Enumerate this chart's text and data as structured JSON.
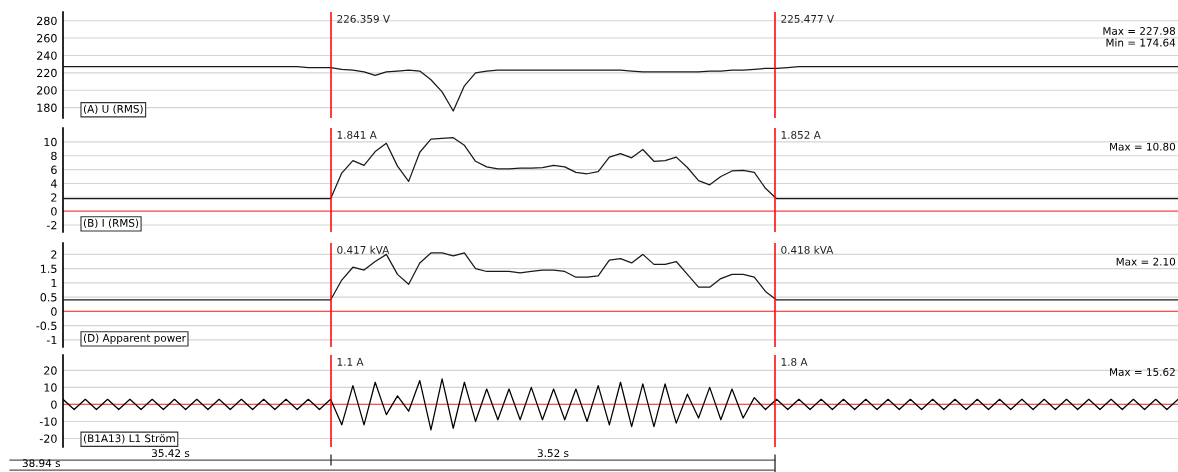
{
  "chart_data": [
    {
      "type": "line",
      "categories": [
        null,
        null,
        null,
        null,
        null,
        null,
        null,
        null,
        null,
        null,
        null,
        null,
        null,
        null,
        null,
        null,
        null,
        null,
        null,
        null,
        null,
        null,
        null,
        null,
        null,
        null,
        null,
        null,
        null,
        null,
        null,
        null,
        null,
        null,
        null,
        null,
        null,
        null,
        null,
        null,
        null,
        null,
        null,
        null,
        null,
        null,
        null,
        null,
        null,
        null,
        null,
        null,
        null,
        null,
        null,
        null,
        null,
        null,
        null,
        null,
        null,
        null,
        null,
        null,
        null,
        null,
        null,
        null,
        null,
        null,
        null,
        null,
        null,
        null,
        null,
        null,
        null,
        null,
        null,
        null,
        null,
        null,
        null,
        null,
        null,
        null,
        null,
        null,
        null,
        null,
        null,
        null,
        null,
        null,
        null,
        null,
        null,
        null,
        null,
        null,
        null
      ],
      "series": [
        {
          "color": "#1a1a1a",
          "values": [
            227,
            227,
            227,
            227,
            227,
            227,
            227,
            227,
            227,
            227,
            227,
            227,
            227,
            227,
            227,
            227,
            227,
            227,
            227,
            227,
            227,
            227,
            226,
            226,
            226,
            224,
            223,
            221,
            217,
            221,
            222,
            223,
            222,
            212,
            198,
            176,
            205,
            220,
            222,
            223,
            223,
            223,
            223,
            223,
            223,
            223,
            223,
            223,
            223,
            223,
            223,
            222,
            221,
            221,
            221,
            221,
            221,
            221,
            222,
            222,
            223,
            223,
            224,
            225,
            225,
            226,
            227,
            227,
            227,
            227,
            227,
            227,
            227,
            227,
            227,
            227,
            227,
            227,
            227,
            227,
            227,
            227,
            227,
            227,
            227,
            227,
            227,
            227,
            227,
            227,
            227,
            227,
            227,
            227,
            227,
            227,
            227,
            227,
            227,
            227,
            227
          ]
        }
      ],
      "ylim": [
        168,
        290
      ],
      "yticks": [
        180,
        200,
        220,
        240,
        260,
        280
      ],
      "grid": "y",
      "tick_labels": "y",
      "line_style": "solid",
      "annotations": [
        "(A) U (RMS)",
        "226.359 V",
        "225.477 V",
        "Max = 227.98",
        "Min = 174.64"
      ]
    },
    {
      "type": "line",
      "categories": [
        null,
        null,
        null,
        null,
        null,
        null,
        null,
        null,
        null,
        null,
        null,
        null,
        null,
        null,
        null,
        null,
        null,
        null,
        null,
        null,
        null,
        null,
        null,
        null,
        null,
        null,
        null,
        null,
        null,
        null,
        null,
        null,
        null,
        null,
        null,
        null,
        null,
        null,
        null,
        null,
        null,
        null,
        null,
        null,
        null,
        null,
        null,
        null,
        null,
        null,
        null,
        null,
        null,
        null,
        null,
        null,
        null,
        null,
        null,
        null,
        null,
        null,
        null,
        null,
        null,
        null,
        null,
        null,
        null,
        null,
        null,
        null,
        null,
        null,
        null,
        null,
        null,
        null,
        null,
        null,
        null,
        null,
        null,
        null,
        null,
        null,
        null,
        null,
        null,
        null,
        null,
        null,
        null,
        null,
        null,
        null,
        null,
        null,
        null,
        null,
        null
      ],
      "series": [
        {
          "color": "#1a1a1a",
          "values": [
            1.8,
            1.8,
            1.8,
            1.8,
            1.8,
            1.8,
            1.8,
            1.8,
            1.8,
            1.8,
            1.8,
            1.8,
            1.8,
            1.8,
            1.8,
            1.8,
            1.8,
            1.8,
            1.8,
            1.8,
            1.8,
            1.8,
            1.8,
            1.8,
            1.8,
            5.5,
            7.3,
            6.6,
            8.6,
            9.8,
            6.5,
            4.3,
            8.5,
            10.4,
            10.5,
            10.6,
            9.5,
            7.2,
            6.4,
            6.1,
            6.1,
            6.2,
            6.2,
            6.3,
            6.6,
            6.4,
            5.6,
            5.4,
            5.7,
            7.8,
            8.3,
            7.7,
            8.9,
            7.2,
            7.3,
            7.8,
            6.3,
            4.4,
            3.8,
            5.0,
            5.8,
            5.9,
            5.6,
            3.3,
            1.8,
            1.8,
            1.8,
            1.8,
            1.8,
            1.8,
            1.8,
            1.8,
            1.8,
            1.8,
            1.8,
            1.8,
            1.8,
            1.8,
            1.8,
            1.8,
            1.8,
            1.8,
            1.8,
            1.8,
            1.8,
            1.8,
            1.8,
            1.8,
            1.8,
            1.8,
            1.8,
            1.8,
            1.8,
            1.8,
            1.8,
            1.8,
            1.8,
            1.8,
            1.8,
            1.8,
            1.8
          ]
        }
      ],
      "ylim": [
        -3,
        12
      ],
      "yticks": [
        -2,
        0,
        2,
        4,
        6,
        8,
        10
      ],
      "grid": "y",
      "tick_labels": "y",
      "line_style": "solid",
      "ref_lines": [
        {
          "axis": "y",
          "value": 0,
          "color": "#ff5050"
        }
      ],
      "annotations": [
        "(B) I (RMS)",
        "1.841 A",
        "1.852 A",
        "Max = 10.80"
      ]
    },
    {
      "type": "line",
      "categories": [
        null,
        null,
        null,
        null,
        null,
        null,
        null,
        null,
        null,
        null,
        null,
        null,
        null,
        null,
        null,
        null,
        null,
        null,
        null,
        null,
        null,
        null,
        null,
        null,
        null,
        null,
        null,
        null,
        null,
        null,
        null,
        null,
        null,
        null,
        null,
        null,
        null,
        null,
        null,
        null,
        null,
        null,
        null,
        null,
        null,
        null,
        null,
        null,
        null,
        null,
        null,
        null,
        null,
        null,
        null,
        null,
        null,
        null,
        null,
        null,
        null,
        null,
        null,
        null,
        null,
        null,
        null,
        null,
        null,
        null,
        null,
        null,
        null,
        null,
        null,
        null,
        null,
        null,
        null,
        null,
        null,
        null,
        null,
        null,
        null,
        null,
        null,
        null,
        null,
        null,
        null,
        null,
        null,
        null,
        null,
        null,
        null,
        null,
        null,
        null,
        null
      ],
      "series": [
        {
          "color": "#1a1a1a",
          "values": [
            0.4,
            0.4,
            0.4,
            0.4,
            0.4,
            0.4,
            0.4,
            0.4,
            0.4,
            0.4,
            0.4,
            0.4,
            0.4,
            0.4,
            0.4,
            0.4,
            0.4,
            0.4,
            0.4,
            0.4,
            0.4,
            0.4,
            0.4,
            0.4,
            0.4,
            1.1,
            1.55,
            1.45,
            1.75,
            2.0,
            1.3,
            0.95,
            1.7,
            2.05,
            2.05,
            1.95,
            2.05,
            1.5,
            1.4,
            1.4,
            1.4,
            1.35,
            1.4,
            1.45,
            1.45,
            1.4,
            1.2,
            1.2,
            1.25,
            1.8,
            1.85,
            1.7,
            2.0,
            1.65,
            1.65,
            1.75,
            1.3,
            0.85,
            0.85,
            1.15,
            1.3,
            1.3,
            1.2,
            0.7,
            0.4,
            0.4,
            0.4,
            0.4,
            0.4,
            0.4,
            0.4,
            0.4,
            0.4,
            0.4,
            0.4,
            0.4,
            0.4,
            0.4,
            0.4,
            0.4,
            0.4,
            0.4,
            0.4,
            0.4,
            0.4,
            0.4,
            0.4,
            0.4,
            0.4,
            0.4,
            0.4,
            0.4,
            0.4,
            0.4,
            0.4,
            0.4,
            0.4,
            0.4,
            0.4,
            0.4,
            0.4
          ]
        }
      ],
      "ylim": [
        -1.25,
        2.4
      ],
      "yticks": [
        -1,
        -0.5,
        0,
        0.5,
        1,
        1.5,
        2
      ],
      "grid": "y",
      "tick_labels": "y",
      "line_style": "solid",
      "ref_lines": [
        {
          "axis": "y",
          "value": 0,
          "color": "#ff5050"
        }
      ],
      "annotations": [
        "(D) Apparent power",
        "0.417 kVA",
        "0.418 kVA",
        "Max = 2.10"
      ]
    },
    {
      "type": "line",
      "categories": [
        null,
        null,
        null,
        null,
        null,
        null,
        null,
        null,
        null,
        null,
        null,
        null,
        null,
        null,
        null,
        null,
        null,
        null,
        null,
        null,
        null,
        null,
        null,
        null,
        null,
        null,
        null,
        null,
        null,
        null,
        null,
        null,
        null,
        null,
        null,
        null,
        null,
        null,
        null,
        null,
        null,
        null,
        null,
        null,
        null,
        null,
        null,
        null,
        null,
        null,
        null,
        null,
        null,
        null,
        null,
        null,
        null,
        null,
        null,
        null,
        null,
        null,
        null,
        null,
        null,
        null,
        null,
        null,
        null,
        null,
        null,
        null,
        null,
        null,
        null,
        null,
        null,
        null,
        null,
        null,
        null,
        null,
        null,
        null,
        null,
        null,
        null,
        null,
        null,
        null,
        null,
        null,
        null,
        null,
        null,
        null,
        null,
        null,
        null,
        null,
        null
      ],
      "series": [
        {
          "color": "#000000",
          "values": [
            3,
            -3,
            3,
            -3,
            3,
            -3,
            3,
            -3,
            3,
            -3,
            3,
            -3,
            3,
            -3,
            3,
            -3,
            3,
            -3,
            3,
            -3,
            3,
            -3,
            3,
            -3,
            3,
            -12,
            11,
            -12,
            13,
            -6,
            5,
            -4,
            14,
            -15,
            15,
            -14,
            13,
            -10,
            9,
            -9,
            9,
            -9,
            10,
            -9,
            9,
            -9,
            9,
            -10,
            11,
            -12,
            13,
            -13,
            12,
            -13,
            12,
            -11,
            6,
            -8,
            10,
            -9,
            9,
            -8,
            4,
            -3,
            3,
            -3,
            3,
            -3,
            3,
            -3,
            3,
            -3,
            3,
            -3,
            3,
            -3,
            3,
            -3,
            3,
            -3,
            3,
            -3,
            3,
            -3,
            3,
            -3,
            3,
            -3,
            3,
            -3,
            3,
            -3,
            3,
            -3,
            3,
            -3,
            3,
            -3,
            3,
            -3,
            3
          ]
        }
      ],
      "ylim": [
        -25,
        29
      ],
      "yticks": [
        -20,
        -10,
        0,
        10,
        20
      ],
      "grid": "y",
      "tick_labels": "y",
      "line_style": "solid",
      "ref_lines": [
        {
          "axis": "y",
          "value": 0,
          "color": "#ff5050"
        }
      ],
      "annotations": [
        "(B1A13) L1 Ström",
        "1.1 A",
        "1.8 A",
        "Max = 15.62",
        "35.42 s",
        "3.52 s",
        "38.94 s"
      ]
    }
  ]
}
